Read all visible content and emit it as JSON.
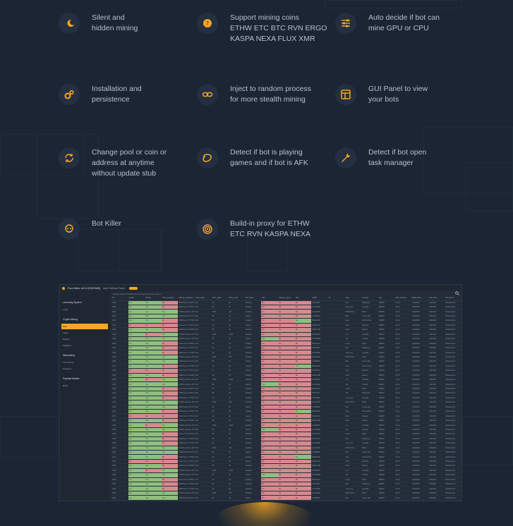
{
  "features": [
    {
      "icon": "moon-icon",
      "text": "Silent and\nhidden mining"
    },
    {
      "icon": "coin-icon",
      "text": "Support mining coins\nETHW ETC BTC RVN ERGO\nKASPA NEXA FLUX XMR"
    },
    {
      "icon": "sliders-icon",
      "text": "Auto decide if bot can\nmine GPU or CPU"
    },
    {
      "icon": "gears-icon",
      "text": "Installation and\npersistence"
    },
    {
      "icon": "link-icon",
      "text": "Inject to random process\nfor more stealth mining"
    },
    {
      "icon": "panel-icon",
      "text": "GUI Panel to view\nyour bots"
    },
    {
      "icon": "refresh-icon",
      "text": "Change pool or coin or\naddress at anytime\nwithout update stub"
    },
    {
      "icon": "game-icon",
      "text": "Detect if bot is playing\ngames and if bot is AFK"
    },
    {
      "icon": "wrench-icon",
      "text": "Detect if bot open\ntask manager"
    },
    {
      "icon": "skull-icon",
      "text": "Bot Killer"
    },
    {
      "icon": "proxy-icon",
      "text": "Build-in proxy for ETHW\nETC RVN KASPA NEXA"
    }
  ],
  "colors": {
    "accent": "#f6a623",
    "background": "#1b2533",
    "icon_bg": "#243041",
    "cell_green": "#8fbf7e",
    "cell_red": "#d68a8d"
  },
  "app": {
    "title": "Pure Miner v6.0.0 [KWGMM]",
    "toggle_label": "Auto Refresh Panel",
    "hint": "Drag a column header here to group by that column",
    "sidebar": [
      {
        "heading": "Licensing System",
        "items": [
          "Login"
        ]
      },
      {
        "heading": "Crypto Mining",
        "items": [
          "Bots",
          "Tasks",
          "Plugins",
          "Statistics"
        ]
      },
      {
        "heading": "Networking",
        "items": [
          "TCP Server",
          "Telegram"
        ]
      },
      {
        "heading": "Payload Builder",
        "items": [
          "Build"
        ]
      }
    ],
    "columns": [
      "ID",
      "Online",
      "Mining",
      "GPU_Enabled",
      "Mining_Hardware",
      "GPU_Hash",
      "CPU_Hash",
      "CPU_Load",
      "PC_Mode",
      "Idle",
      "Playing_Game",
      "AFK",
      "HWID",
      "IP",
      "User",
      "Country",
      "Tag",
      "Stub_Version",
      "Build_Date",
      "Last_Ping",
      "OS_Name"
    ],
    "rows": [
      [
        "1034",
        "Yes",
        "Yes",
        "No",
        "AMD Ryzen 5 3600 6-Core",
        "N/A",
        "58",
        "20",
        "Desktop",
        "No",
        "No",
        "No",
        "7BF10FF1",
        "",
        "Rua",
        "Philippines",
        "FRESH",
        "v6.0.0",
        "1/18/2023",
        "1/16/2023",
        "Windows Def"
      ],
      [
        "1535",
        "Yes",
        "Yes",
        "No",
        "AMD Ryzen 7 3700X",
        "N/A",
        "38",
        "20",
        "Desktop",
        "No",
        "No",
        "No",
        "4A11A85E",
        "",
        "mouz_pro",
        "Australia",
        "FRESH",
        "v6.0.0",
        "1/18/2023",
        "1/16/2023",
        "Windows Def"
      ],
      [
        "1031",
        "Yes",
        "Yes",
        "Yes",
        "NVIDIA GeForce RTX 3060",
        "N/A",
        "4,800",
        "100",
        "Desktop",
        "No",
        "No",
        "No",
        "DA41C9D1",
        "",
        "DMSF Prive",
        "Brazil",
        "FRESH",
        "v6.0.0",
        "1/18/2023",
        "1/16/2023",
        "Windows Def"
      ],
      [
        "1065",
        "Yes",
        "Yes",
        "Yes",
        "AMD Radeon RX 5700",
        "N/A",
        "88",
        "20",
        "Laptop",
        "No",
        "No",
        "No",
        "C13B95AF",
        "",
        "Bvin",
        "Kenan Mex",
        "FRESH",
        "v6.0.0",
        "1/18/2023",
        "1/16/2023",
        "Windows Def"
      ],
      [
        "1071",
        "Yes",
        "Yes",
        "No",
        "AMD Ryzen 7 5700X 8-Core",
        "N/A",
        "58",
        "20",
        "Desktop",
        "No",
        "No",
        "Yes",
        "8BE0A36C",
        "",
        "Gato",
        "South Africa",
        "FRESH",
        "v6.0.0",
        "1/18/2023",
        "1/16/2023",
        "Windows Def"
      ],
      [
        "1076",
        "No",
        "No",
        "No",
        "Intel Core i7-3770 CPU",
        "N/A",
        "32",
        "20",
        "Laptop",
        "No",
        "No",
        "No",
        "2F1D19A4",
        "",
        "Khan",
        "Pakistan",
        "FRESH",
        "v6.0.0",
        "1/18/2023",
        "1/16/2023",
        "Windows Def"
      ],
      [
        "1052",
        "Yes",
        "Yes",
        "No",
        "AMD Ryzen 5 5600X",
        "N/A",
        "38",
        "20",
        "Desktop",
        "No",
        "No",
        "No",
        "3E0F1AB8",
        "",
        "bodk",
        "Russia",
        "FRESH",
        "v6.0.0",
        "1/18/2023",
        "1/16/2023",
        "Windows Def"
      ],
      [
        "1048",
        "Yes",
        "No",
        "Yes",
        "NVIDIA GeForce GTX 1660",
        "N/A",
        "5,800",
        "1,000",
        "Desktop",
        "No",
        "No",
        "No",
        "8A23B0F9",
        "",
        "Leo",
        "Australia",
        "FRESH",
        "v6.0.0",
        "1/18/2023",
        "1/16/2023",
        "Windows Def"
      ],
      [
        "1053",
        "Yes",
        "Yes",
        "Yes",
        "NVIDIA GeForce RTX 3070",
        "N/A",
        "88",
        "20",
        "Laptop",
        "Yes",
        "No",
        "No",
        "4C2D91E0",
        "",
        "Jan",
        "Vietnam",
        "FRESH",
        "v6.0.0",
        "1/18/2023",
        "1/16/2023",
        "Windows Def"
      ],
      [
        "1056",
        "Yes",
        "Yes",
        "No",
        "Intel Core i5-10400 CPU",
        "N/A",
        "38",
        "20",
        "Desktop",
        "No",
        "No",
        "No",
        "9E7DC2A1",
        "",
        "Lucas",
        "Brazil",
        "FRESH",
        "v6.0.0",
        "1/18/2023",
        "1/16/2023",
        "Windows Def"
      ]
    ]
  }
}
